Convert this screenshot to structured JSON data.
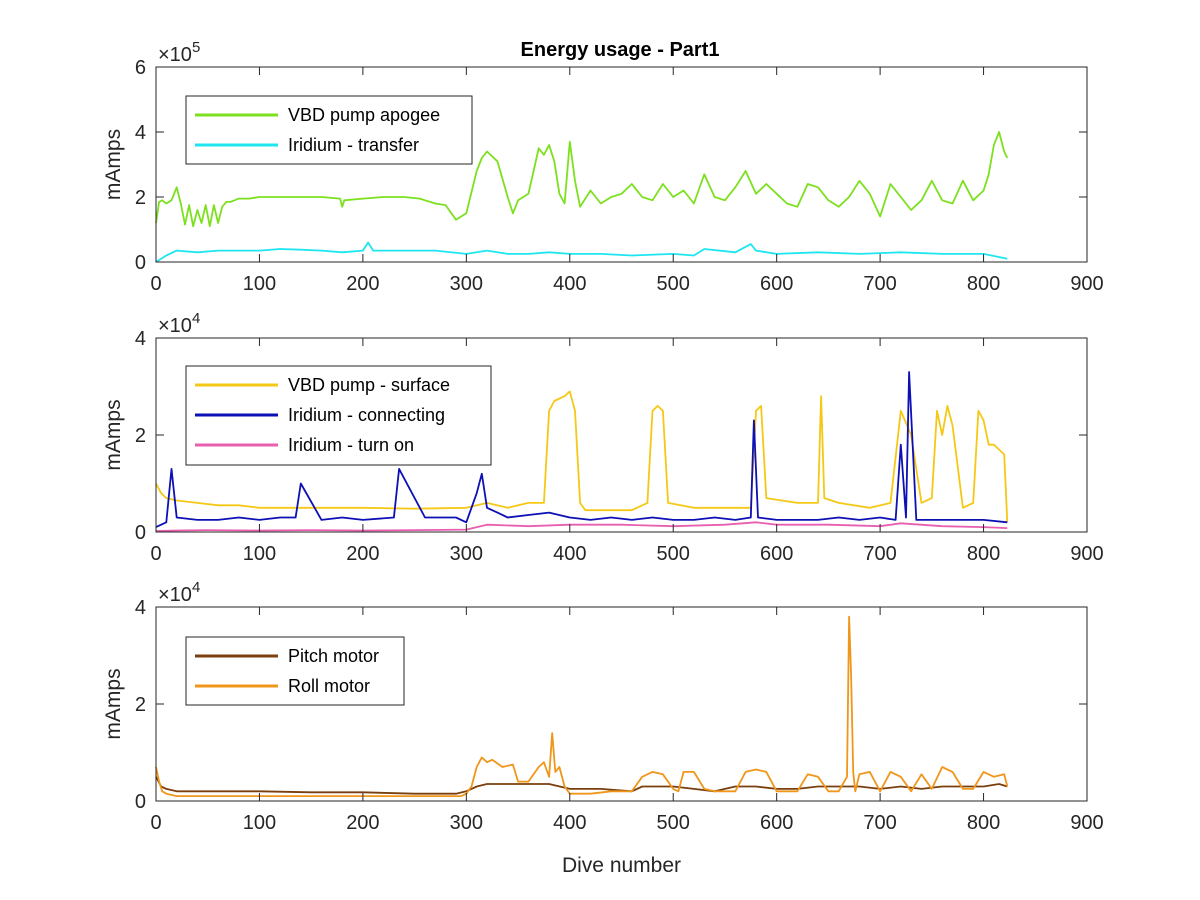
{
  "title": "Energy usage - Part1",
  "chart_data": [
    {
      "type": "line",
      "title": "Energy usage - Part1",
      "xlabel": "",
      "ylabel": "mAmps",
      "multiplier": {
        "base": "×10",
        "exp": "5"
      },
      "xlim": [
        0,
        900
      ],
      "ylim": [
        0,
        600000
      ],
      "xticks": [
        0,
        100,
        200,
        300,
        400,
        500,
        600,
        700,
        800,
        900
      ],
      "yticks": [
        {
          "v": 0,
          "label": "0"
        },
        {
          "v": 200000,
          "label": "2"
        },
        {
          "v": 400000,
          "label": "4"
        },
        {
          "v": 600000,
          "label": "6"
        }
      ],
      "legend_position": "top-left",
      "series": [
        {
          "name": "VBD pump apogee",
          "color": "#7de01e",
          "x": [
            0,
            3,
            6,
            10,
            15,
            20,
            24,
            28,
            32,
            36,
            40,
            44,
            48,
            52,
            56,
            60,
            64,
            68,
            72,
            76,
            80,
            90,
            100,
            120,
            140,
            160,
            178,
            180,
            182,
            200,
            220,
            240,
            255,
            260,
            270,
            280,
            290,
            300,
            310,
            315,
            320,
            330,
            340,
            345,
            350,
            360,
            365,
            370,
            375,
            380,
            385,
            390,
            395,
            400,
            405,
            410,
            420,
            430,
            440,
            450,
            460,
            470,
            480,
            490,
            500,
            510,
            520,
            530,
            540,
            550,
            560,
            570,
            580,
            590,
            600,
            610,
            620,
            630,
            640,
            650,
            660,
            670,
            680,
            690,
            700,
            710,
            720,
            730,
            740,
            750,
            760,
            770,
            780,
            790,
            800,
            805,
            810,
            815,
            820,
            823
          ],
          "y": [
            120000,
            185000,
            190000,
            180000,
            190000,
            230000,
            180000,
            115000,
            175000,
            110000,
            160000,
            120000,
            175000,
            110000,
            175000,
            120000,
            170000,
            185000,
            185000,
            190000,
            195000,
            195000,
            200000,
            200000,
            200000,
            200000,
            195000,
            170000,
            190000,
            195000,
            200000,
            200000,
            195000,
            190000,
            180000,
            175000,
            130000,
            150000,
            280000,
            320000,
            340000,
            310000,
            200000,
            150000,
            190000,
            210000,
            280000,
            350000,
            330000,
            360000,
            310000,
            210000,
            180000,
            370000,
            250000,
            170000,
            220000,
            180000,
            200000,
            210000,
            240000,
            200000,
            190000,
            240000,
            200000,
            220000,
            180000,
            270000,
            200000,
            190000,
            230000,
            280000,
            210000,
            240000,
            210000,
            180000,
            170000,
            240000,
            230000,
            190000,
            170000,
            200000,
            250000,
            210000,
            140000,
            240000,
            200000,
            160000,
            190000,
            250000,
            190000,
            180000,
            250000,
            190000,
            220000,
            270000,
            360000,
            400000,
            340000,
            320000
          ]
        },
        {
          "name": "Iridium - transfer",
          "color": "#1ee6f0",
          "x": [
            0,
            10,
            20,
            40,
            60,
            80,
            100,
            120,
            140,
            160,
            180,
            200,
            205,
            210,
            240,
            270,
            300,
            320,
            340,
            360,
            380,
            400,
            430,
            460,
            500,
            520,
            530,
            560,
            575,
            580,
            600,
            640,
            680,
            720,
            760,
            800,
            823
          ],
          "y": [
            0,
            20000,
            35000,
            30000,
            35000,
            35000,
            35000,
            40000,
            38000,
            35000,
            30000,
            35000,
            60000,
            35000,
            35000,
            35000,
            25000,
            35000,
            25000,
            25000,
            30000,
            25000,
            25000,
            20000,
            25000,
            20000,
            40000,
            30000,
            55000,
            35000,
            25000,
            30000,
            25000,
            30000,
            25000,
            25000,
            10000
          ]
        }
      ]
    },
    {
      "type": "line",
      "title": "",
      "xlabel": "",
      "ylabel": "mAmps",
      "multiplier": {
        "base": "×10",
        "exp": "4"
      },
      "xlim": [
        0,
        900
      ],
      "ylim": [
        0,
        40000
      ],
      "xticks": [
        0,
        100,
        200,
        300,
        400,
        500,
        600,
        700,
        800,
        900
      ],
      "yticks": [
        {
          "v": 0,
          "label": "0"
        },
        {
          "v": 20000,
          "label": "2"
        },
        {
          "v": 40000,
          "label": "4"
        }
      ],
      "legend_position": "top-left",
      "series": [
        {
          "name": "VBD pump - surface",
          "color": "#f5c816",
          "x": [
            0,
            5,
            10,
            20,
            40,
            60,
            80,
            100,
            150,
            200,
            250,
            300,
            320,
            340,
            360,
            375,
            380,
            385,
            395,
            400,
            405,
            410,
            415,
            430,
            460,
            475,
            480,
            485,
            490,
            495,
            520,
            560,
            575,
            580,
            585,
            590,
            620,
            640,
            643,
            646,
            660,
            690,
            710,
            720,
            730,
            740,
            750,
            755,
            760,
            765,
            770,
            780,
            790,
            795,
            800,
            805,
            810,
            815,
            820,
            823
          ],
          "y": [
            10000,
            8000,
            7000,
            6500,
            6000,
            5500,
            5500,
            5000,
            5000,
            5000,
            4800,
            5000,
            6000,
            5000,
            6000,
            6000,
            25000,
            27000,
            28000,
            29000,
            25000,
            6000,
            4500,
            4500,
            4500,
            6000,
            25000,
            26000,
            25000,
            6000,
            5000,
            5000,
            5000,
            25000,
            26000,
            7000,
            6000,
            6000,
            28000,
            7000,
            6000,
            5000,
            6000,
            25000,
            20000,
            6000,
            7000,
            25000,
            20000,
            26000,
            22000,
            5000,
            6000,
            25000,
            23000,
            18000,
            18000,
            17000,
            16000,
            2000
          ]
        },
        {
          "name": "Iridium - connecting",
          "color": "#0d10b5",
          "x": [
            0,
            10,
            15,
            20,
            40,
            60,
            80,
            100,
            120,
            135,
            140,
            160,
            180,
            200,
            230,
            235,
            260,
            290,
            300,
            310,
            315,
            320,
            330,
            340,
            360,
            380,
            400,
            420,
            440,
            460,
            480,
            500,
            520,
            540,
            560,
            575,
            578,
            582,
            600,
            620,
            640,
            660,
            680,
            700,
            715,
            720,
            725,
            728,
            735,
            760,
            780,
            800,
            823
          ],
          "y": [
            1000,
            2000,
            13000,
            3000,
            2500,
            2500,
            3000,
            2500,
            3000,
            3000,
            10000,
            2500,
            3000,
            2500,
            3000,
            13000,
            3000,
            3000,
            2000,
            8000,
            12000,
            5000,
            4000,
            3000,
            3500,
            4000,
            3000,
            2500,
            3000,
            2500,
            3000,
            2500,
            2500,
            3000,
            2500,
            3000,
            23000,
            3000,
            2500,
            2500,
            2500,
            3000,
            2500,
            3000,
            2500,
            18000,
            3000,
            33000,
            2500,
            2500,
            2500,
            2500,
            2000
          ]
        },
        {
          "name": "Iridium - turn on",
          "color": "#e85fb0",
          "x": [
            0,
            20,
            50,
            100,
            150,
            200,
            250,
            300,
            320,
            360,
            400,
            450,
            500,
            550,
            580,
            600,
            650,
            700,
            720,
            760,
            800,
            823
          ],
          "y": [
            200,
            300,
            400,
            300,
            400,
            300,
            400,
            500,
            1500,
            1200,
            1500,
            1500,
            1200,
            1500,
            2000,
            1500,
            1500,
            1200,
            1800,
            1200,
            1000,
            800
          ]
        }
      ]
    },
    {
      "type": "line",
      "title": "",
      "xlabel": "Dive number",
      "ylabel": "mAmps",
      "multiplier": {
        "base": "×10",
        "exp": "4"
      },
      "xlim": [
        0,
        900
      ],
      "ylim": [
        0,
        40000
      ],
      "xticks": [
        0,
        100,
        200,
        300,
        400,
        500,
        600,
        700,
        800,
        900
      ],
      "yticks": [
        {
          "v": 0,
          "label": "0"
        },
        {
          "v": 20000,
          "label": "2"
        },
        {
          "v": 40000,
          "label": "4"
        }
      ],
      "legend_position": "top-left",
      "series": [
        {
          "name": "Pitch motor",
          "color": "#7a3f0e",
          "x": [
            0,
            5,
            10,
            20,
            40,
            60,
            80,
            100,
            150,
            200,
            250,
            290,
            300,
            310,
            320,
            340,
            360,
            380,
            400,
            430,
            460,
            470,
            500,
            520,
            540,
            560,
            580,
            600,
            620,
            640,
            660,
            680,
            700,
            720,
            740,
            760,
            780,
            800,
            815,
            823
          ],
          "y": [
            5000,
            3000,
            2500,
            2000,
            2000,
            2000,
            2000,
            2000,
            1800,
            1800,
            1500,
            1500,
            2000,
            3000,
            3500,
            3500,
            3500,
            3500,
            2500,
            2500,
            2000,
            3000,
            3000,
            2500,
            2000,
            3000,
            3000,
            2500,
            2500,
            3000,
            3000,
            3000,
            2500,
            3000,
            2500,
            3000,
            3000,
            3000,
            3500,
            3000
          ]
        },
        {
          "name": "Roll motor",
          "color": "#f0961a",
          "x": [
            0,
            3,
            6,
            10,
            20,
            40,
            60,
            80,
            100,
            150,
            200,
            250,
            295,
            300,
            305,
            310,
            315,
            320,
            325,
            335,
            345,
            350,
            360,
            370,
            375,
            380,
            383,
            386,
            390,
            395,
            400,
            410,
            420,
            440,
            460,
            470,
            480,
            490,
            500,
            505,
            510,
            520,
            530,
            540,
            560,
            570,
            580,
            590,
            600,
            610,
            620,
            630,
            640,
            650,
            660,
            668,
            670,
            672,
            674,
            676,
            680,
            690,
            700,
            710,
            720,
            730,
            740,
            750,
            760,
            770,
            780,
            790,
            800,
            810,
            820,
            823
          ],
          "y": [
            7000,
            4000,
            2000,
            1500,
            1000,
            1000,
            1000,
            1000,
            1000,
            1000,
            1000,
            1000,
            1000,
            1500,
            3000,
            7000,
            9000,
            8000,
            8500,
            7000,
            7500,
            4000,
            4000,
            7000,
            8000,
            5000,
            14000,
            6000,
            7000,
            3000,
            1500,
            1500,
            1500,
            2000,
            2000,
            5000,
            6000,
            5500,
            2500,
            2000,
            6000,
            6000,
            2500,
            2000,
            2000,
            6000,
            6500,
            6000,
            2000,
            2000,
            2000,
            5500,
            5000,
            2000,
            2000,
            5000,
            38000,
            26000,
            6000,
            2000,
            5500,
            6000,
            2000,
            6000,
            5000,
            2000,
            5500,
            2500,
            7000,
            6000,
            2500,
            2500,
            6000,
            5000,
            5500,
            3000
          ]
        }
      ]
    }
  ]
}
